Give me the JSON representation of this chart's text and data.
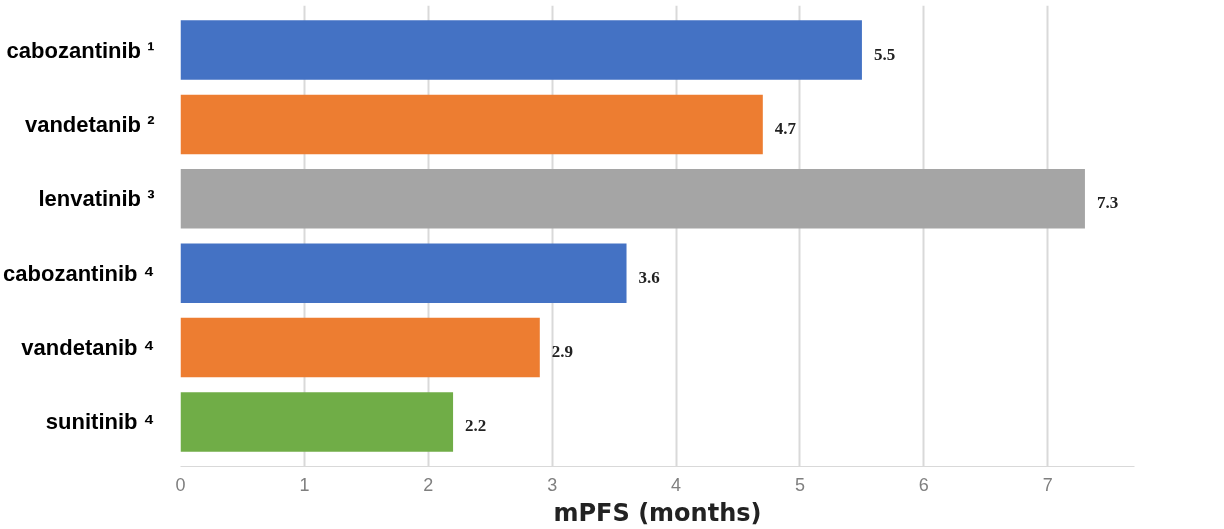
{
  "chart_data": {
    "type": "bar",
    "orientation": "horizontal",
    "xlabel": "mPFS (months)",
    "categories": [
      "cabozantinib ¹",
      "vandetanib ²",
      "lenvatinib ³",
      "cabozantinib ⁴",
      "vandetanib ⁴",
      "sunitinib ⁴"
    ],
    "values": [
      5.5,
      4.7,
      7.3,
      3.6,
      2.9,
      2.2
    ],
    "colors": [
      "#4472c4",
      "#ed7d31",
      "#a5a5a5",
      "#4472c4",
      "#ed7d31",
      "#70ad47"
    ],
    "xlim": [
      0,
      7.7
    ],
    "xticks": [
      0,
      1,
      2,
      3,
      4,
      5,
      6,
      7
    ],
    "grid": "x",
    "data_labels": true
  }
}
